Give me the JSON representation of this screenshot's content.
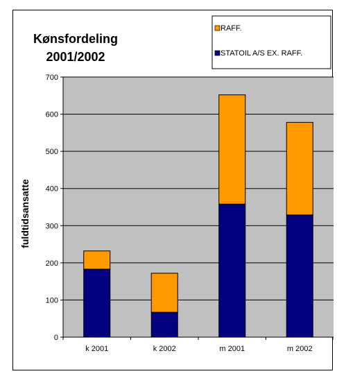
{
  "chart_data": {
    "type": "bar",
    "stacked": true,
    "title_line1": "Kønsfordeling",
    "title_line2": "2001/2002",
    "xlabel": "",
    "ylabel": "fuldtidsansatte",
    "ylim": [
      0,
      700
    ],
    "yticks": [
      0,
      100,
      200,
      300,
      400,
      500,
      600,
      700
    ],
    "grid": true,
    "legend_position": "top-right",
    "categories": [
      "k 2001",
      "k 2002",
      "m 2001",
      "m 2002"
    ],
    "series": [
      {
        "name": "STATOIL A/S EX. RAFF.",
        "color": "#000080",
        "values": [
          183,
          67,
          358,
          329
        ]
      },
      {
        "name": "RAFF.",
        "color": "#FF9900",
        "values": [
          49,
          105,
          294,
          249
        ]
      }
    ],
    "plot_background": "#C0C0C0"
  }
}
